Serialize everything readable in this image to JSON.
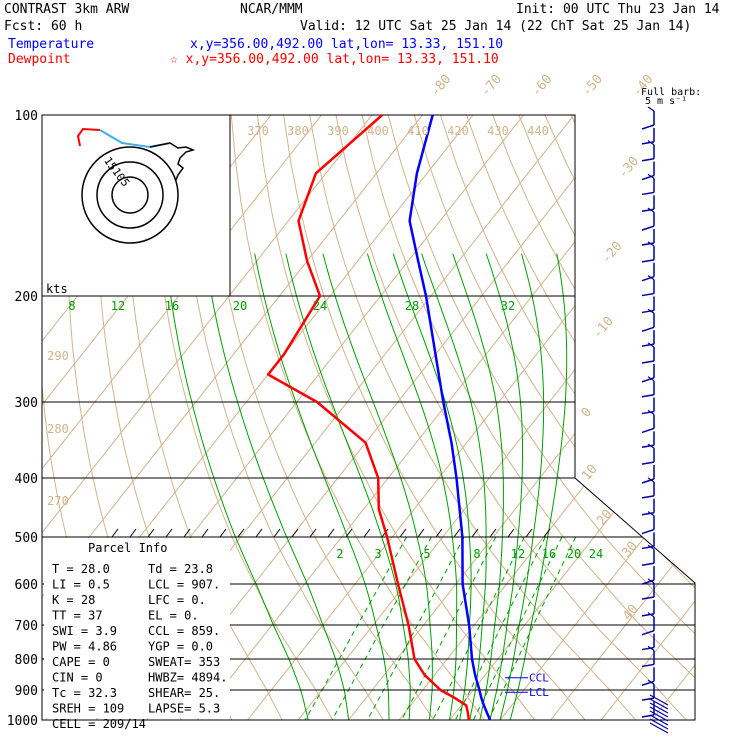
{
  "header": {
    "product": "CONTRAST  3km ARW",
    "forecast": "Fcst:    60 h",
    "center": "NCAR/MMM",
    "init": "Init: 00 UTC Thu 23 Jan 14",
    "valid": "Valid: 12 UTC Sat 25 Jan 14 (22 ChT Sat 25 Jan 14)",
    "temperature_label": "Temperature",
    "temperature_loc": "x,y=356.00,492.00    lat,lon= 13.33, 151.10",
    "dewpoint_label": "Dewpoint",
    "dewpoint_loc": "☆ x,y=356.00,492.00    lat,lon= 13.33, 151.10"
  },
  "colors": {
    "temperature": "#0000ff",
    "dewpoint": "#ff0000",
    "isotherm": "#d2b48c",
    "dry_adiabat": "#d2b48c",
    "moist_adiabat": "#00a000",
    "mixing_ratio": "#00a000",
    "hodograph_low": "#ff0000",
    "hodograph_mid": "#40b0e0",
    "hodograph_high": "#000000",
    "wind_barb": "#0000a0"
  },
  "barb_legend": {
    "line1": "Full barb:",
    "line2": "5 m s⁻¹"
  },
  "hodograph": {
    "unit_label": "kts",
    "ring_labels": [
      "5",
      "10",
      "15"
    ]
  },
  "chart_data": {
    "type": "line",
    "title": "",
    "ylabel": "",
    "xlabel": "",
    "pressure_ticks": [
      "100",
      "200",
      "300",
      "400",
      "500",
      "600",
      "700",
      "800",
      "900",
      "1000"
    ],
    "isotherm_labels": [
      "-80",
      "-70",
      "-60",
      "-50",
      "-40",
      "-30",
      "-20",
      "-10",
      "0",
      "10",
      "20",
      "30",
      "40"
    ],
    "theta_labels_upper": [
      "370",
      "380",
      "390",
      "400",
      "410",
      "420",
      "430",
      "440"
    ],
    "theta_labels_lower": [
      "290",
      "280",
      "270"
    ],
    "mixing_ratio_labels_upper": [
      "8",
      "12",
      "16",
      "20",
      "24",
      "28",
      "32"
    ],
    "mixing_ratio_labels_lower": [
      "2",
      "3",
      "5",
      "8",
      "12",
      "16",
      "20",
      "24"
    ],
    "series": [
      {
        "name": "Temperature",
        "pressure": [
          1000,
          950,
          925,
          900,
          850,
          800,
          700,
          600,
          500,
          450,
          400,
          350,
          300,
          250,
          200,
          175,
          150,
          125,
          100
        ],
        "temperature": [
          28.0,
          24.5,
          22.8,
          21.2,
          18.0,
          14.9,
          9.0,
          1.3,
          -6.1,
          -11.0,
          -16.5,
          -23.0,
          -31.0,
          -40.0,
          -51.0,
          -58.0,
          -66.0,
          -72.0,
          -78.0
        ]
      },
      {
        "name": "Dewpoint",
        "pressure": [
          1000,
          975,
          950,
          925,
          900,
          850,
          800,
          700,
          600,
          500,
          450,
          400,
          350,
          300,
          270,
          250,
          200,
          175,
          150,
          125,
          100
        ],
        "dewpoint": [
          23.8,
          22.5,
          21.0,
          17.5,
          13.5,
          8.0,
          3.5,
          -3.0,
          -11.5,
          -21.0,
          -27.0,
          -32.0,
          -40.0,
          -56.0,
          -70.0,
          -70.0,
          -72.0,
          -80.0,
          -88.0,
          -92.0,
          -88.0
        ]
      }
    ],
    "markers": [
      {
        "label": "CCL",
        "pressure": 859
      },
      {
        "label": "LCL",
        "pressure": 907
      }
    ],
    "parcel_info": {
      "title": "Parcel Info",
      "rows": [
        [
          "T   =    28.0",
          "Td =   23.8"
        ],
        [
          "LI  =     0.5",
          "LCL =  907."
        ],
        [
          "K   =      28",
          "LFC =    0."
        ],
        [
          "TT  =      37",
          "EL  =    0."
        ],
        [
          "SWI =     3.9",
          "CCL =  859."
        ],
        [
          "PW  =    4.86",
          "YGP =   0.0"
        ],
        [
          "CAPE =      0",
          "SWEAT=  353"
        ],
        [
          "CIN  =      0",
          "HWBZ= 4894."
        ],
        [
          "Tc  =    32.3",
          "SHEAR=  25."
        ],
        [
          "SREH =    109",
          "LAPSE=  5.3"
        ],
        [
          "CELL = 209/14",
          ""
        ]
      ]
    }
  }
}
